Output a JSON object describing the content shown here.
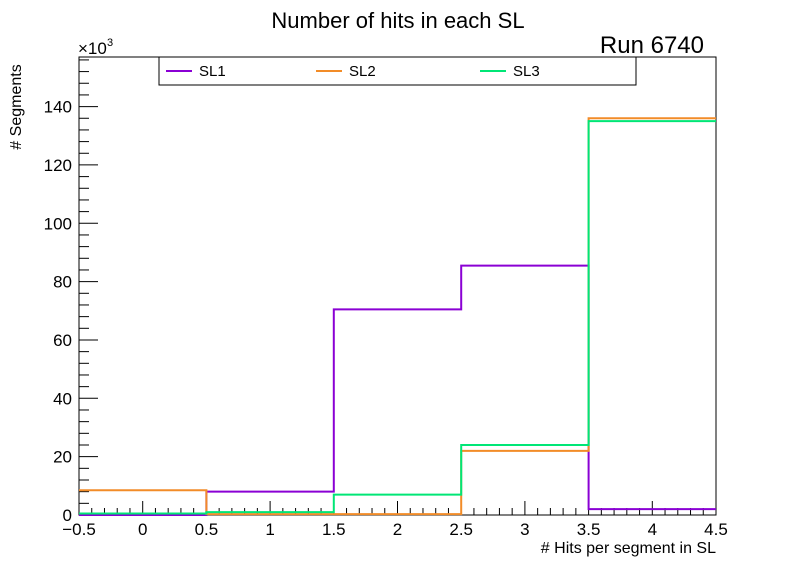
{
  "chart_data": {
    "type": "histogram-step",
    "title": "Number of hits in each SL",
    "annotation": "Run 6740",
    "xlabel": "# Hits per segment in SL",
    "ylabel": "# Segments",
    "y_multiplier_label": "×10",
    "y_multiplier_exp": "3",
    "xlim": [
      -0.5,
      4.5
    ],
    "ylim": [
      0,
      157
    ],
    "x_ticks": [
      -0.5,
      0,
      0.5,
      1,
      1.5,
      2,
      2.5,
      3,
      3.5,
      4,
      4.5
    ],
    "x_tick_labels": [
      "−0.5",
      "0",
      "0.5",
      "1",
      "1.5",
      "2",
      "2.5",
      "3",
      "3.5",
      "4",
      "4.5"
    ],
    "y_ticks": [
      0,
      20,
      40,
      60,
      80,
      100,
      120,
      140
    ],
    "y_tick_labels": [
      "0",
      "20",
      "40",
      "60",
      "80",
      "100",
      "120",
      "140"
    ],
    "bin_edges": [
      -0.5,
      0.5,
      1.5,
      2.5,
      3.5,
      4.5
    ],
    "series": [
      {
        "name": "SL1",
        "color": "#8a00d4",
        "values": [
          0,
          8,
          70.5,
          85.5,
          2
        ]
      },
      {
        "name": "SL2",
        "color": "#f28c28",
        "values": [
          8.5,
          0.3,
          0.3,
          22,
          136
        ]
      },
      {
        "name": "SL3",
        "color": "#00e676",
        "values": [
          0.5,
          1,
          7,
          24,
          135
        ]
      }
    ],
    "legend_position": "top"
  }
}
